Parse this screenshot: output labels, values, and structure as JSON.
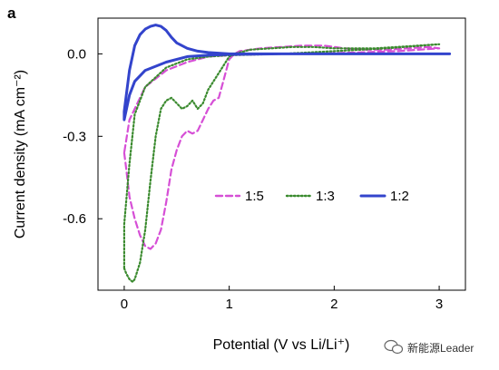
{
  "panel_label": "a",
  "watermark": {
    "text": "新能源Leader",
    "icon": "wechat-icon"
  },
  "chart_data": {
    "type": "line",
    "title": "",
    "xlabel": "Potential (V vs Li/Li⁺)",
    "ylabel": "Current density (mA cm⁻²)",
    "xlim": [
      -0.25,
      3.25
    ],
    "ylim": [
      -0.86,
      0.13
    ],
    "xticks": [
      0,
      1,
      2,
      3
    ],
    "xtick_labels": [
      "0",
      "1",
      "2",
      "3"
    ],
    "yticks": [
      0.0,
      -0.3,
      -0.6
    ],
    "ytick_labels": [
      "0.0",
      "-0.3",
      "-0.6"
    ],
    "grid": false,
    "legend_position": "center-right",
    "series": [
      {
        "name": "1:5",
        "color": "#d64fd6",
        "style": "dashed",
        "x": [
          0.0,
          0.02,
          0.05,
          0.1,
          0.15,
          0.2,
          0.25,
          0.3,
          0.35,
          0.4,
          0.45,
          0.5,
          0.55,
          0.6,
          0.65,
          0.7,
          0.75,
          0.8,
          0.85,
          0.9,
          0.95,
          1.0,
          1.05,
          1.1,
          1.3,
          1.5,
          1.7,
          1.9,
          2.1,
          2.3,
          2.5,
          2.7,
          2.9,
          3.0,
          2.6,
          2.2,
          1.8,
          1.4,
          1.0,
          0.8,
          0.6,
          0.4,
          0.2,
          0.05,
          0.0
        ],
        "y": [
          -0.36,
          -0.42,
          -0.52,
          -0.6,
          -0.66,
          -0.7,
          -0.71,
          -0.69,
          -0.64,
          -0.54,
          -0.42,
          -0.35,
          -0.3,
          -0.28,
          -0.29,
          -0.28,
          -0.24,
          -0.2,
          -0.17,
          -0.16,
          -0.09,
          -0.02,
          0.0,
          0.01,
          0.02,
          0.025,
          0.03,
          0.03,
          0.02,
          0.015,
          0.015,
          0.02,
          0.025,
          0.02,
          0.01,
          0.005,
          0.0,
          0.0,
          -0.005,
          -0.01,
          -0.03,
          -0.06,
          -0.12,
          -0.24,
          -0.36
        ]
      },
      {
        "name": "1:3",
        "color": "#3a8a2e",
        "style": "dotted",
        "x": [
          0.0,
          0.02,
          0.05,
          0.08,
          0.1,
          0.15,
          0.2,
          0.25,
          0.3,
          0.35,
          0.4,
          0.45,
          0.5,
          0.55,
          0.6,
          0.65,
          0.7,
          0.75,
          0.8,
          0.85,
          0.9,
          0.95,
          1.0,
          1.05,
          1.2,
          1.4,
          1.6,
          1.8,
          2.0,
          2.2,
          2.4,
          2.6,
          2.8,
          3.0,
          2.5,
          2.0,
          1.5,
          1.0,
          0.8,
          0.6,
          0.4,
          0.2,
          0.1,
          0.05,
          0.0
        ],
        "y": [
          -0.78,
          -0.8,
          -0.82,
          -0.83,
          -0.82,
          -0.76,
          -0.64,
          -0.46,
          -0.3,
          -0.2,
          -0.17,
          -0.16,
          -0.18,
          -0.2,
          -0.19,
          -0.17,
          -0.2,
          -0.18,
          -0.13,
          -0.1,
          -0.07,
          -0.04,
          -0.01,
          0.0,
          0.015,
          0.02,
          0.025,
          0.025,
          0.02,
          0.02,
          0.02,
          0.025,
          0.03,
          0.035,
          0.02,
          0.01,
          0.0,
          -0.005,
          -0.01,
          -0.02,
          -0.05,
          -0.12,
          -0.22,
          -0.4,
          -0.62
        ]
      },
      {
        "name": "1:2",
        "color": "#3344cc",
        "style": "solid",
        "x": [
          0.0,
          0.02,
          0.05,
          0.1,
          0.15,
          0.2,
          0.25,
          0.3,
          0.35,
          0.4,
          0.45,
          0.5,
          0.6,
          0.7,
          0.8,
          1.0,
          1.5,
          2.0,
          2.5,
          3.0,
          3.1,
          2.5,
          2.0,
          1.5,
          1.0,
          0.8,
          0.6,
          0.4,
          0.2,
          0.1,
          0.05,
          0.0
        ],
        "y": [
          -0.21,
          -0.15,
          -0.06,
          0.03,
          0.07,
          0.09,
          0.1,
          0.105,
          0.1,
          0.085,
          0.06,
          0.04,
          0.02,
          0.01,
          0.005,
          0.0,
          0.0,
          0.0,
          0.0,
          0.0,
          0.0,
          0.0,
          0.0,
          0.0,
          -0.002,
          -0.005,
          -0.01,
          -0.03,
          -0.06,
          -0.1,
          -0.15,
          -0.24
        ]
      }
    ]
  }
}
